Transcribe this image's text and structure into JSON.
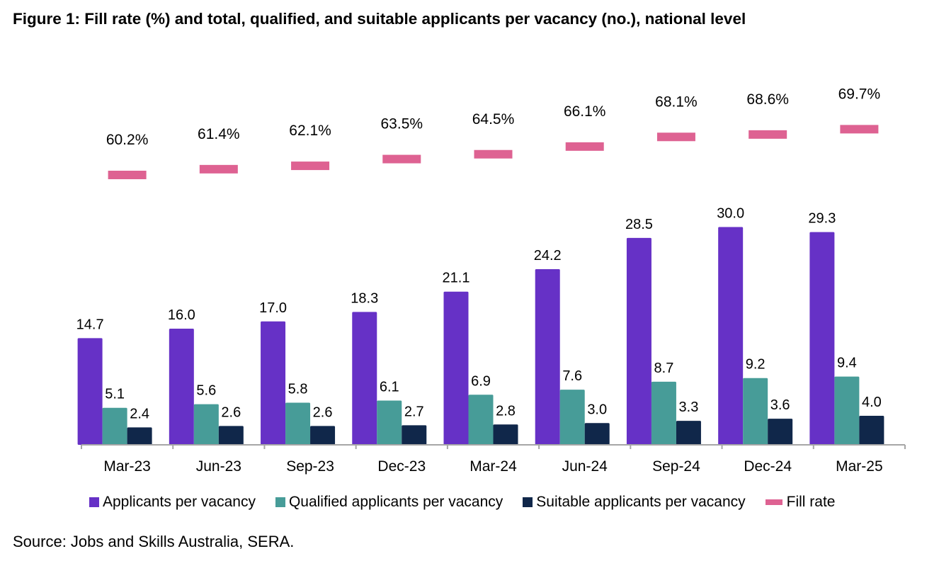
{
  "title": "Figure 1: Fill rate (%) and total, qualified, and suitable applicants per vacancy (no.), national level",
  "source": "Source: Jobs and Skills Australia, SERA.",
  "colors": {
    "applicants": "#6631C6",
    "qualified": "#479C98",
    "suitable": "#10274A",
    "fill_rate": "#DE6292",
    "axis": "#A6A6A6"
  },
  "chart_data": {
    "type": "bar",
    "categories": [
      "Mar-23",
      "Jun-23",
      "Sep-23",
      "Dec-23",
      "Mar-24",
      "Jun-24",
      "Sep-24",
      "Dec-24",
      "Mar-25"
    ],
    "series": [
      {
        "name": "Applicants per vacancy",
        "color_key": "applicants",
        "values": [
          14.7,
          16.0,
          17.0,
          18.3,
          21.1,
          24.2,
          28.5,
          30.0,
          29.3
        ],
        "labels": [
          "14.7",
          "16.0",
          "17.0",
          "18.3",
          "21.1",
          "24.2",
          "28.5",
          "30.0",
          "29.3"
        ]
      },
      {
        "name": "Qualified applicants per vacancy",
        "color_key": "qualified",
        "values": [
          5.1,
          5.6,
          5.8,
          6.1,
          6.9,
          7.6,
          8.7,
          9.2,
          9.4
        ],
        "labels": [
          "5.1",
          "5.6",
          "5.8",
          "6.1",
          "6.9",
          "7.6",
          "8.7",
          "9.2",
          "9.4"
        ]
      },
      {
        "name": "Suitable applicants per vacancy",
        "color_key": "suitable",
        "values": [
          2.4,
          2.6,
          2.6,
          2.7,
          2.8,
          3.0,
          3.3,
          3.6,
          4.0
        ],
        "labels": [
          "2.4",
          "2.6",
          "2.6",
          "2.7",
          "2.8",
          "3.0",
          "3.3",
          "3.6",
          "4.0"
        ]
      }
    ],
    "fill_rate": {
      "name": "Fill rate",
      "type": "marker-dash",
      "color_key": "fill_rate",
      "values": [
        60.2,
        61.4,
        62.1,
        63.5,
        64.5,
        66.1,
        68.1,
        68.6,
        69.7
      ],
      "labels": [
        "60.2%",
        "61.4%",
        "62.1%",
        "63.5%",
        "64.5%",
        "66.1%",
        "68.1%",
        "68.6%",
        "69.7%"
      ]
    },
    "legend_position": "bottom",
    "grid": false
  }
}
